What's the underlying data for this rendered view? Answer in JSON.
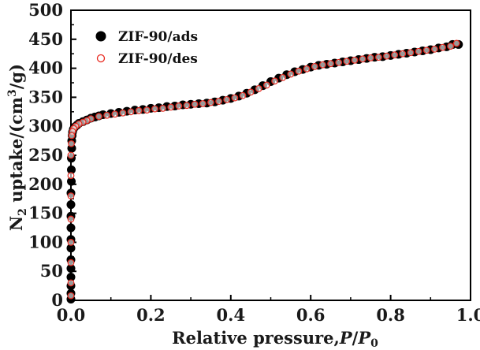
{
  "colors": {
    "ads_fill": "#000000",
    "des_stroke": "#e8281e",
    "des_fill": "#ffffff",
    "axis": "#000000"
  },
  "chart_data": {
    "type": "scatter",
    "title": "",
    "xlim": [
      0.0,
      1.0
    ],
    "ylim": [
      0,
      500
    ],
    "x_ticks": [
      0.0,
      0.2,
      0.4,
      0.6,
      0.8,
      1.0
    ],
    "x_tick_labels": [
      "0.0",
      "0.2",
      "0.4",
      "0.6",
      "0.8",
      "1.0"
    ],
    "y_ticks": [
      0,
      50,
      100,
      150,
      200,
      250,
      300,
      350,
      400,
      450,
      500
    ],
    "y_tick_labels": [
      "0",
      "50",
      "100",
      "150",
      "200",
      "250",
      "300",
      "350",
      "400",
      "450",
      "500"
    ],
    "xlabel": {
      "main": "Relative pressure,",
      "var1": "P",
      "slash": "/",
      "var2": "P",
      "var2_sub": "0"
    },
    "ylabel": {
      "prefix": "N",
      "sub": "2",
      "mid": " uptake/(cm",
      "sup": "3",
      "suffix": "/g)"
    },
    "legend_position": "top-left",
    "grid": false,
    "series": [
      {
        "name": "ZIF-90/ads",
        "marker": "filled-circle",
        "points": [
          [
            0.0,
            2
          ],
          [
            0.0,
            12
          ],
          [
            0.0,
            25
          ],
          [
            0.0,
            40
          ],
          [
            0.0,
            55
          ],
          [
            0.0,
            70
          ],
          [
            0.0,
            90
          ],
          [
            0.0,
            105
          ],
          [
            0.0,
            125
          ],
          [
            0.0,
            145
          ],
          [
            0.0,
            165
          ],
          [
            0.0,
            185
          ],
          [
            0.001,
            205
          ],
          [
            0.001,
            225
          ],
          [
            0.001,
            245
          ],
          [
            0.002,
            262
          ],
          [
            0.002,
            275
          ],
          [
            0.003,
            284
          ],
          [
            0.004,
            290
          ],
          [
            0.006,
            295
          ],
          [
            0.01,
            299
          ],
          [
            0.015,
            302
          ],
          [
            0.02,
            305
          ],
          [
            0.03,
            308
          ],
          [
            0.04,
            311
          ],
          [
            0.05,
            314
          ],
          [
            0.06,
            316
          ],
          [
            0.07,
            318
          ],
          [
            0.08,
            320
          ],
          [
            0.1,
            322
          ],
          [
            0.12,
            324
          ],
          [
            0.14,
            326
          ],
          [
            0.16,
            328
          ],
          [
            0.18,
            329
          ],
          [
            0.2,
            331
          ],
          [
            0.22,
            332
          ],
          [
            0.24,
            334
          ],
          [
            0.26,
            335
          ],
          [
            0.28,
            337
          ],
          [
            0.3,
            338
          ],
          [
            0.32,
            339
          ],
          [
            0.34,
            340
          ],
          [
            0.36,
            342
          ],
          [
            0.38,
            345
          ],
          [
            0.4,
            348
          ],
          [
            0.42,
            352
          ],
          [
            0.44,
            357
          ],
          [
            0.46,
            363
          ],
          [
            0.48,
            370
          ],
          [
            0.5,
            377
          ],
          [
            0.52,
            383
          ],
          [
            0.54,
            389
          ],
          [
            0.56,
            394
          ],
          [
            0.58,
            398
          ],
          [
            0.6,
            402
          ],
          [
            0.62,
            405
          ],
          [
            0.64,
            407
          ],
          [
            0.66,
            409
          ],
          [
            0.68,
            411
          ],
          [
            0.7,
            413
          ],
          [
            0.72,
            415
          ],
          [
            0.74,
            417
          ],
          [
            0.76,
            419
          ],
          [
            0.78,
            420
          ],
          [
            0.8,
            422
          ],
          [
            0.82,
            424
          ],
          [
            0.84,
            426
          ],
          [
            0.86,
            428
          ],
          [
            0.88,
            430
          ],
          [
            0.9,
            432
          ],
          [
            0.92,
            435
          ],
          [
            0.94,
            437
          ],
          [
            0.955,
            441
          ],
          [
            0.97,
            441
          ]
        ]
      },
      {
        "name": "ZIF-90/des",
        "marker": "open-circle",
        "points": [
          [
            0.965,
            443
          ],
          [
            0.95,
            438
          ],
          [
            0.93,
            436
          ],
          [
            0.91,
            433
          ],
          [
            0.89,
            431
          ],
          [
            0.87,
            429
          ],
          [
            0.85,
            427
          ],
          [
            0.83,
            425
          ],
          [
            0.81,
            423
          ],
          [
            0.79,
            421
          ],
          [
            0.77,
            419
          ],
          [
            0.75,
            418
          ],
          [
            0.73,
            416
          ],
          [
            0.71,
            414
          ],
          [
            0.69,
            412
          ],
          [
            0.67,
            410
          ],
          [
            0.65,
            408
          ],
          [
            0.63,
            406
          ],
          [
            0.61,
            403
          ],
          [
            0.59,
            399
          ],
          [
            0.57,
            395
          ],
          [
            0.55,
            390
          ],
          [
            0.53,
            384
          ],
          [
            0.51,
            378
          ],
          [
            0.49,
            371
          ],
          [
            0.47,
            365
          ],
          [
            0.45,
            359
          ],
          [
            0.43,
            353
          ],
          [
            0.41,
            349
          ],
          [
            0.39,
            346
          ],
          [
            0.37,
            343
          ],
          [
            0.35,
            341
          ],
          [
            0.33,
            339
          ],
          [
            0.31,
            338
          ],
          [
            0.29,
            336
          ],
          [
            0.27,
            335
          ],
          [
            0.25,
            333
          ],
          [
            0.23,
            331
          ],
          [
            0.21,
            330
          ],
          [
            0.19,
            328
          ],
          [
            0.17,
            327
          ],
          [
            0.15,
            325
          ],
          [
            0.13,
            323
          ],
          [
            0.11,
            321
          ],
          [
            0.09,
            319
          ],
          [
            0.07,
            317
          ],
          [
            0.05,
            313
          ],
          [
            0.04,
            310
          ],
          [
            0.03,
            307
          ],
          [
            0.02,
            304
          ],
          [
            0.012,
            300
          ],
          [
            0.007,
            296
          ],
          [
            0.004,
            291
          ],
          [
            0.002,
            284
          ],
          [
            0.001,
            270
          ],
          [
            0.0,
            250
          ],
          [
            0.0,
            215
          ],
          [
            0.0,
            180
          ],
          [
            0.0,
            140
          ],
          [
            0.0,
            100
          ],
          [
            0.0,
            65
          ],
          [
            0.0,
            30
          ],
          [
            0.0,
            8
          ]
        ]
      }
    ]
  }
}
